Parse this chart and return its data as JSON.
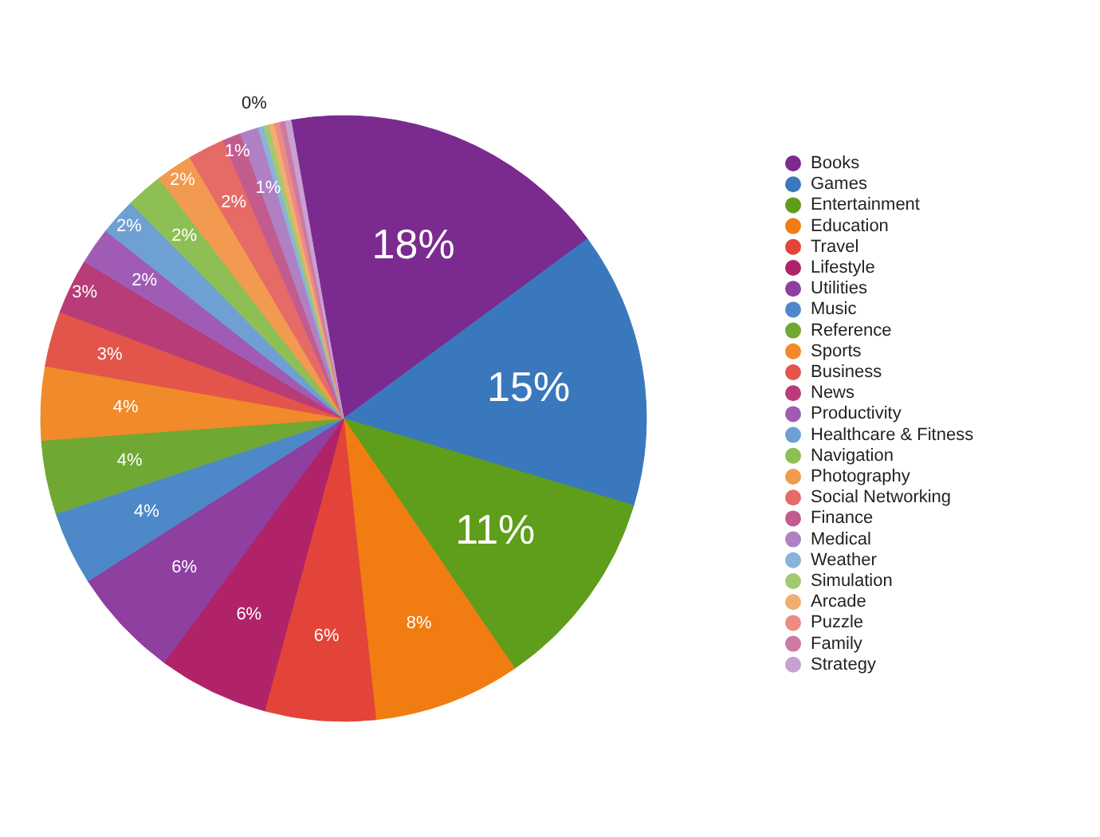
{
  "chart_data": {
    "type": "pie",
    "categories": [
      "Books",
      "Games",
      "Entertainment",
      "Education",
      "Travel",
      "Lifestyle",
      "Utilities",
      "Music",
      "Reference",
      "Sports",
      "Business",
      "News",
      "Productivity",
      "Healthcare & Fitness",
      "Navigation",
      "Photography",
      "Social Networking",
      "Finance",
      "Medical",
      "Weather",
      "Simulation",
      "Arcade",
      "Puzzle",
      "Family",
      "Strategy"
    ],
    "values": [
      18,
      15,
      11,
      8,
      6,
      6,
      6,
      4,
      4,
      4,
      3,
      3,
      2,
      2,
      2,
      2,
      2,
      1,
      1,
      0.3,
      0.3,
      0.3,
      0.3,
      0.3,
      0.3
    ],
    "value_labels": [
      "18%",
      "15%",
      "11%",
      "8%",
      "6%",
      "6%",
      "6%",
      "4%",
      "4%",
      "4%",
      "3%",
      "3%",
      "2%",
      "2%",
      "2%",
      "2%",
      "2%",
      "1%",
      "1%",
      "0%",
      null,
      null,
      null,
      null,
      null
    ],
    "colors": [
      "#7b2a8f",
      "#3a78bd",
      "#5e9e1a",
      "#f07c12",
      "#e3443a",
      "#b02368",
      "#8e3fa0",
      "#4d89c9",
      "#6fa833",
      "#f08a2a",
      "#e3554a",
      "#b83c78",
      "#a05cb5",
      "#6fa0d4",
      "#8dbf55",
      "#f29a50",
      "#e66b66",
      "#c25c8f",
      "#b080c4",
      "#88b3dc",
      "#a3c970",
      "#f2ae70",
      "#ec8a84",
      "#cc7aa3",
      "#c9a0d4"
    ],
    "legend": "right"
  }
}
